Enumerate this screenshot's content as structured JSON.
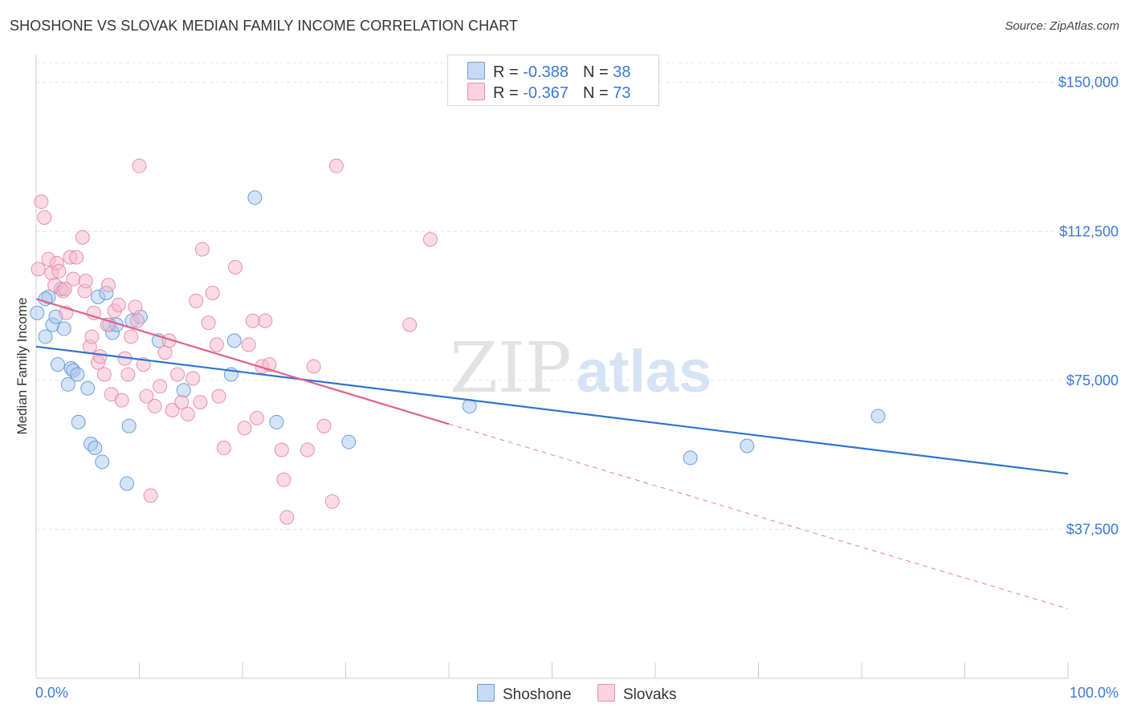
{
  "header": {
    "title": "SHOSHONE VS SLOVAK MEDIAN FAMILY INCOME CORRELATION CHART",
    "source": "Source: ZipAtlas.com"
  },
  "watermark": {
    "zip": "ZIP",
    "atlas": "atlas"
  },
  "legend": {
    "rows": [
      {
        "r_label": "R = ",
        "r_value": "-0.388",
        "n_label": "N = ",
        "n_value": "38",
        "color": "#a9c8ee"
      },
      {
        "r_label": "R = ",
        "r_value": "-0.367",
        "n_label": "N = ",
        "n_value": "73",
        "color": "#f6b8cb"
      }
    ]
  },
  "bottom_legend": [
    {
      "label": "Shoshone",
      "color": "#a9c8ee"
    },
    {
      "label": "Slovaks",
      "color": "#f6b8cb"
    }
  ],
  "chart_data": {
    "type": "scatter",
    "title": "SHOSHONE VS SLOVAK MEDIAN FAMILY INCOME CORRELATION CHART",
    "xlabel": "",
    "ylabel": "Median Family Income",
    "xlim": [
      0,
      100
    ],
    "ylim": [
      0,
      155000
    ],
    "x_tick_labels": [
      "0.0%",
      "100.0%"
    ],
    "y_ticks": [
      37500,
      75000,
      112500,
      150000
    ],
    "y_tick_labels": [
      "$37,500",
      "$75,000",
      "$112,500",
      "$150,000"
    ],
    "grid": true,
    "legend_position": "top-center",
    "series": [
      {
        "name": "Shoshone",
        "color": "#a9c8ee",
        "stroke": "#6a9fdc",
        "trend_color": "#2f74d0",
        "trend": {
          "x": [
            0,
            100
          ],
          "y": [
            83500,
            51500
          ]
        },
        "points": [
          [
            0.1,
            92000
          ],
          [
            1.2,
            96000
          ],
          [
            0.9,
            86000
          ],
          [
            1.6,
            89000
          ],
          [
            1.9,
            91000
          ],
          [
            2.1,
            79000
          ],
          [
            2.4,
            98000
          ],
          [
            2.7,
            88000
          ],
          [
            3.1,
            74000
          ],
          [
            3.4,
            78000
          ],
          [
            3.6,
            77500
          ],
          [
            4.0,
            76500
          ],
          [
            4.1,
            64500
          ],
          [
            5.0,
            73000
          ],
          [
            5.3,
            59000
          ],
          [
            5.7,
            58000
          ],
          [
            6.0,
            96000
          ],
          [
            6.4,
            54500
          ],
          [
            6.8,
            97000
          ],
          [
            7.1,
            89000
          ],
          [
            7.4,
            87000
          ],
          [
            7.8,
            89000
          ],
          [
            8.8,
            49000
          ],
          [
            9.0,
            63500
          ],
          [
            9.3,
            90000
          ],
          [
            10.1,
            91000
          ],
          [
            11.9,
            85000
          ],
          [
            14.3,
            72500
          ],
          [
            18.9,
            76500
          ],
          [
            19.2,
            85000
          ],
          [
            21.2,
            121000
          ],
          [
            23.3,
            64500
          ],
          [
            30.3,
            59500
          ],
          [
            42.0,
            68500
          ],
          [
            63.4,
            55500
          ],
          [
            68.9,
            58500
          ],
          [
            81.6,
            66000
          ],
          [
            0.9,
            95500
          ]
        ]
      },
      {
        "name": "Slovaks",
        "color": "#f6b8cb",
        "stroke": "#e98fad",
        "trend_color": "#e0608a",
        "trend": {
          "x": [
            0,
            40.0
          ],
          "y": [
            95500,
            64000
          ]
        },
        "trend_dashed": {
          "x": [
            40.0,
            100
          ],
          "y": [
            64000,
            17500
          ]
        },
        "points": [
          [
            0.5,
            120000
          ],
          [
            0.8,
            116000
          ],
          [
            0.2,
            103000
          ],
          [
            1.2,
            105500
          ],
          [
            1.5,
            102000
          ],
          [
            1.8,
            99000
          ],
          [
            2.0,
            104500
          ],
          [
            2.2,
            102500
          ],
          [
            2.6,
            97500
          ],
          [
            2.9,
            92000
          ],
          [
            3.3,
            106000
          ],
          [
            3.6,
            100500
          ],
          [
            3.9,
            106000
          ],
          [
            4.5,
            111000
          ],
          [
            4.7,
            97500
          ],
          [
            4.8,
            100000
          ],
          [
            5.2,
            83500
          ],
          [
            5.4,
            86000
          ],
          [
            5.6,
            92000
          ],
          [
            6.0,
            79500
          ],
          [
            6.2,
            81000
          ],
          [
            6.6,
            76500
          ],
          [
            7.0,
            99000
          ],
          [
            7.3,
            71500
          ],
          [
            7.6,
            92500
          ],
          [
            8.0,
            94000
          ],
          [
            8.3,
            70000
          ],
          [
            8.6,
            80500
          ],
          [
            8.9,
            76500
          ],
          [
            9.2,
            86000
          ],
          [
            9.6,
            93500
          ],
          [
            10.0,
            129000
          ],
          [
            10.4,
            79000
          ],
          [
            10.7,
            71000
          ],
          [
            11.1,
            46000
          ],
          [
            11.5,
            68500
          ],
          [
            12.0,
            73500
          ],
          [
            12.5,
            82000
          ],
          [
            12.9,
            85000
          ],
          [
            13.2,
            67500
          ],
          [
            13.7,
            76500
          ],
          [
            14.1,
            69500
          ],
          [
            14.7,
            66500
          ],
          [
            15.2,
            75500
          ],
          [
            15.5,
            95000
          ],
          [
            15.9,
            69500
          ],
          [
            16.1,
            108000
          ],
          [
            16.7,
            89500
          ],
          [
            17.1,
            97000
          ],
          [
            17.5,
            84000
          ],
          [
            17.7,
            71000
          ],
          [
            18.2,
            58000
          ],
          [
            19.3,
            103500
          ],
          [
            20.2,
            63000
          ],
          [
            20.6,
            84000
          ],
          [
            21.0,
            90000
          ],
          [
            21.4,
            65500
          ],
          [
            21.9,
            78500
          ],
          [
            22.2,
            90000
          ],
          [
            22.6,
            79000
          ],
          [
            23.8,
            57500
          ],
          [
            24.0,
            50000
          ],
          [
            24.3,
            40500
          ],
          [
            26.3,
            57500
          ],
          [
            26.9,
            78500
          ],
          [
            27.9,
            63500
          ],
          [
            28.7,
            44500
          ],
          [
            29.1,
            129000
          ],
          [
            36.2,
            89000
          ],
          [
            38.2,
            110500
          ],
          [
            9.8,
            90000
          ],
          [
            6.9,
            89000
          ],
          [
            2.8,
            98000
          ]
        ]
      }
    ]
  }
}
